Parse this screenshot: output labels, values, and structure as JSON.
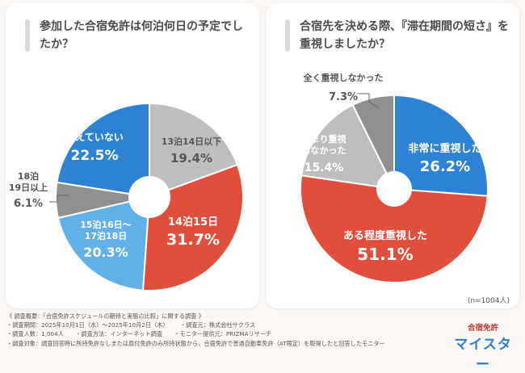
{
  "chart_data": [
    {
      "type": "pie",
      "title": "参加した合宿免許は何泊何日の予定でしたか？",
      "slices": [
        {
          "label": "13泊14日以下",
          "value": 19.4,
          "value_text": "19.4%",
          "color": "#bebebe"
        },
        {
          "label": "14泊15日",
          "value": 31.7,
          "value_text": "31.7%",
          "color": "#e14e3c"
        },
        {
          "label": "15泊16日〜17泊18日",
          "value": 20.3,
          "value_text": "20.3%",
          "color": "#62b0e8"
        },
        {
          "label": "18泊19日以上",
          "value": 6.1,
          "value_text": "6.1%",
          "color": "#909090"
        },
        {
          "label": "覚えていない",
          "value": 22.5,
          "value_text": "22.5%",
          "color": "#2d82d4"
        }
      ]
    },
    {
      "type": "pie",
      "title": "合宿先を決める際、『滞在期間の短さ』を重視しましたか？",
      "slices": [
        {
          "label": "非常に重視した",
          "value": 26.2,
          "value_text": "26.2%",
          "color": "#2d82d4"
        },
        {
          "label": "ある程度重視した",
          "value": 51.1,
          "value_text": "51.1%",
          "color": "#e14e3c"
        },
        {
          "label": "あまり重視しなかった",
          "value": 15.4,
          "value_text": "15.4%",
          "color": "#bebebe"
        },
        {
          "label": "全く重視しなかった",
          "value": 7.3,
          "value_text": "7.3%",
          "color": "#909090"
        }
      ],
      "note": "(n=1004人)"
    }
  ],
  "survey": {
    "overview": "《 調査概要：「合宿免許スケジュールの期待と実態の比較」に関する調査 》",
    "period": "・調査期間：2025年10月1日（水）～2025年10月2日（木）",
    "organizer": "・調査元：株式会社サクラス",
    "count": "・調査人数：1,004人",
    "method": "・調査方法：インターネット調査",
    "monitor": "・モニター提供元：PRIZMAリサーチ",
    "target": "・調査対象：調査回答時に所持免許なしまたは原付免許のみ所持状態から、合宿免許で普通自動車免許（AT限定）を取得したと回答したモニター"
  },
  "logo": {
    "line1": "合宿免許",
    "line2": "マイスター"
  }
}
